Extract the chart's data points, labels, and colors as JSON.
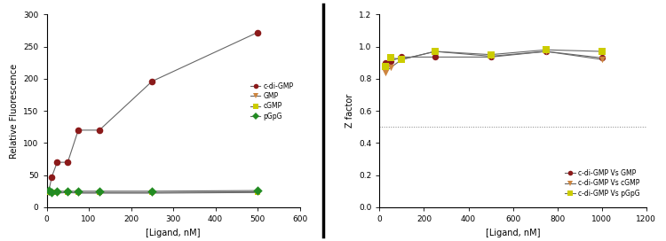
{
  "left": {
    "cdi_x": [
      5,
      12,
      25,
      50,
      75,
      125,
      250,
      500
    ],
    "cdi_y": [
      25,
      47,
      70,
      70,
      120,
      120,
      196,
      272
    ],
    "gmp_x": [
      5,
      12,
      25,
      50,
      75,
      125,
      250,
      500
    ],
    "gmp_y": [
      23,
      22,
      22,
      23,
      22,
      22,
      22,
      23
    ],
    "cgmp_x": [
      5,
      12,
      25,
      50,
      75,
      125,
      250,
      500
    ],
    "cgmp_y": [
      24,
      23,
      23,
      23,
      23,
      23,
      23,
      24
    ],
    "pgpg_x": [
      5,
      12,
      25,
      50,
      75,
      125,
      250,
      500
    ],
    "pgpg_y": [
      26,
      24,
      25,
      25,
      25,
      25,
      25,
      26
    ],
    "xlabel": "[Ligand, nM]",
    "ylabel": "Relative Fluorescence",
    "xlim": [
      0,
      600
    ],
    "ylim": [
      0,
      300
    ],
    "xticks": [
      0,
      100,
      200,
      300,
      400,
      500,
      600
    ],
    "yticks": [
      0,
      50,
      100,
      150,
      200,
      250,
      300
    ],
    "legend_labels": [
      "c-di-GMP",
      "GMP",
      "cGMP",
      "pGpG"
    ],
    "cdi_color": "#8B1A1A",
    "gmp_color": "#CD853F",
    "cgmp_color": "#CCCC00",
    "pgpg_color": "#228B22",
    "line_color": "#666666"
  },
  "right": {
    "gmp_x": [
      25,
      50,
      100,
      250,
      500,
      750,
      1000
    ],
    "gmp_y": [
      0.9,
      0.91,
      0.935,
      0.935,
      0.935,
      0.97,
      0.93
    ],
    "cgmp_x": [
      25,
      50,
      100,
      250,
      500,
      750,
      1000
    ],
    "cgmp_y": [
      0.84,
      0.87,
      0.92,
      0.97,
      0.94,
      0.97,
      0.92
    ],
    "pgpg_x": [
      25,
      50,
      100,
      250,
      500,
      750,
      1000
    ],
    "pgpg_y": [
      0.875,
      0.93,
      0.92,
      0.97,
      0.95,
      0.98,
      0.97
    ],
    "hline_y": 0.5,
    "xlabel": "[Ligand, nM]",
    "ylabel": "Z factor",
    "xlim": [
      0,
      1200
    ],
    "ylim": [
      0.0,
      1.2
    ],
    "xticks": [
      0,
      200,
      400,
      600,
      800,
      1000,
      1200
    ],
    "yticks": [
      0.0,
      0.2,
      0.4,
      0.6,
      0.8,
      1.0,
      1.2
    ],
    "legend_labels": [
      "c-di-GMP Vs GMP",
      "c-di-GMP Vs cGMP",
      "c-di-GMP Vs pGpG"
    ],
    "gmp_color": "#8B1A1A",
    "cgmp_color": "#CD853F",
    "pgpg_color": "#CCCC00",
    "line_color": "#666666"
  },
  "fig_width": 7.5,
  "fig_height": 2.72,
  "dpi": 100
}
